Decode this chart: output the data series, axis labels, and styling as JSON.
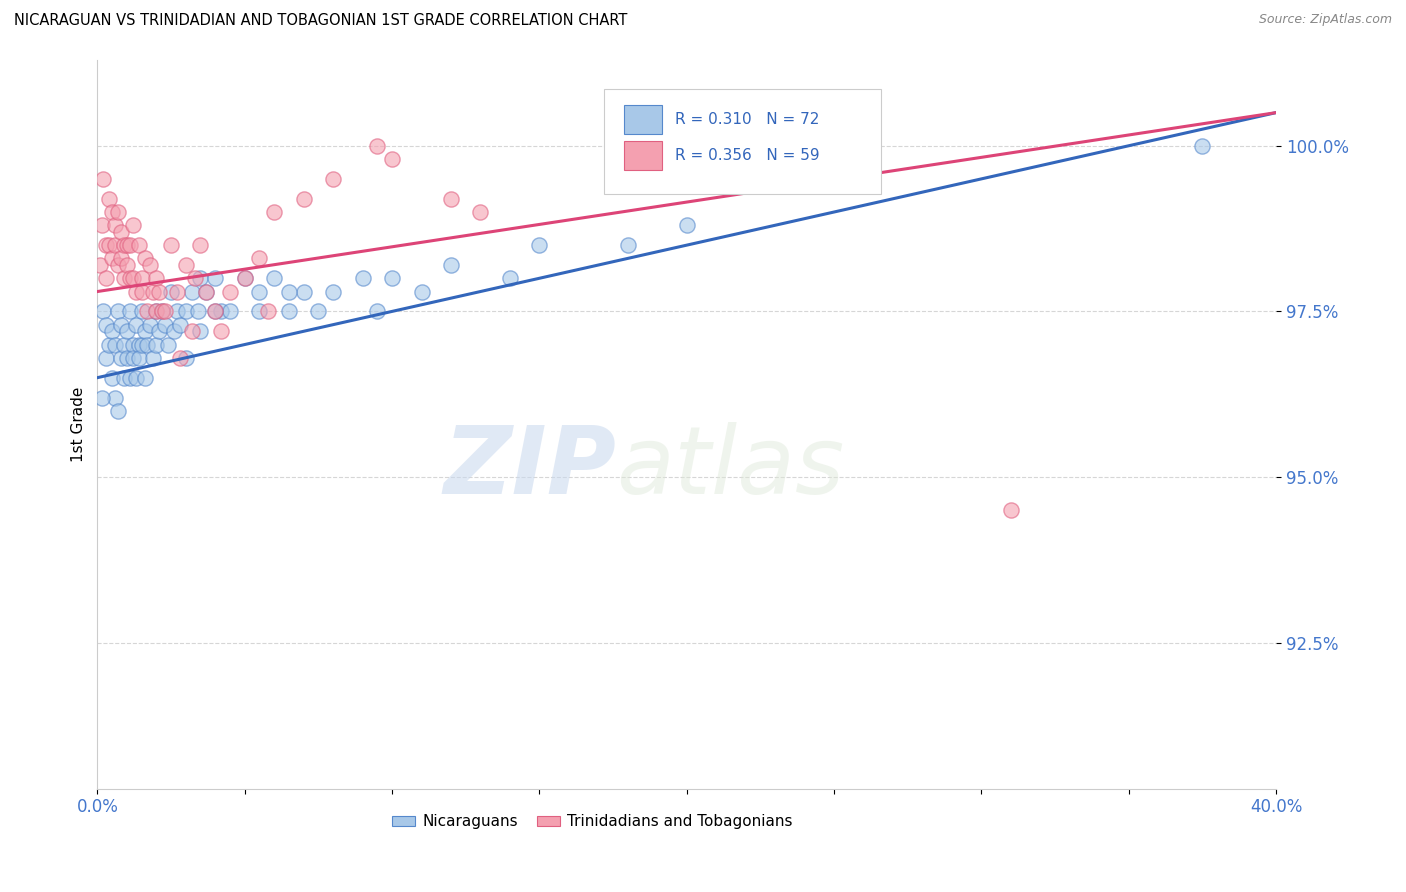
{
  "title": "NICARAGUAN VS TRINIDADIAN AND TOBAGONIAN 1ST GRADE CORRELATION CHART",
  "source": "Source: ZipAtlas.com",
  "ylabel": "1st Grade",
  "y_ticks": [
    92.5,
    95.0,
    97.5,
    100.0
  ],
  "y_tick_labels": [
    "92.5%",
    "95.0%",
    "97.5%",
    "100.0%"
  ],
  "x_lim": [
    0.0,
    40.0
  ],
  "y_lim": [
    90.3,
    101.3
  ],
  "blue_R": 0.31,
  "blue_N": 72,
  "pink_R": 0.356,
  "pink_N": 59,
  "blue_color": "#a8c8e8",
  "pink_color": "#f4a0b0",
  "blue_edge_color": "#5588cc",
  "pink_edge_color": "#e06080",
  "blue_line_color": "#3366bb",
  "pink_line_color": "#dd4477",
  "watermark_zip": "ZIP",
  "watermark_atlas": "atlas",
  "blue_line_x0": 0.0,
  "blue_line_y0": 96.5,
  "blue_line_x1": 40.0,
  "blue_line_y1": 100.5,
  "pink_line_x0": 0.0,
  "pink_line_y0": 97.8,
  "pink_line_x1": 40.0,
  "pink_line_y1": 100.5,
  "blue_points_x": [
    0.2,
    0.3,
    0.3,
    0.4,
    0.5,
    0.5,
    0.6,
    0.6,
    0.7,
    0.7,
    0.8,
    0.8,
    0.9,
    0.9,
    1.0,
    1.0,
    1.1,
    1.1,
    1.2,
    1.2,
    1.3,
    1.3,
    1.4,
    1.4,
    1.5,
    1.5,
    1.6,
    1.6,
    1.7,
    1.8,
    1.9,
    2.0,
    2.0,
    2.1,
    2.2,
    2.3,
    2.4,
    2.5,
    2.6,
    2.7,
    2.8,
    3.0,
    3.2,
    3.4,
    3.5,
    3.7,
    4.0,
    4.2,
    4.5,
    5.0,
    5.5,
    6.0,
    6.5,
    7.0,
    7.5,
    8.0,
    9.0,
    10.0,
    11.0,
    12.0,
    14.0,
    15.0,
    18.0,
    20.0,
    3.0,
    3.5,
    4.0,
    5.5,
    6.5,
    9.5,
    37.5,
    0.15
  ],
  "blue_points_y": [
    97.5,
    97.3,
    96.8,
    97.0,
    97.2,
    96.5,
    97.0,
    96.2,
    97.5,
    96.0,
    97.3,
    96.8,
    97.0,
    96.5,
    97.2,
    96.8,
    96.5,
    97.5,
    97.0,
    96.8,
    97.3,
    96.5,
    97.0,
    96.8,
    97.5,
    97.0,
    97.2,
    96.5,
    97.0,
    97.3,
    96.8,
    97.5,
    97.0,
    97.2,
    97.5,
    97.3,
    97.0,
    97.8,
    97.2,
    97.5,
    97.3,
    97.5,
    97.8,
    97.5,
    98.0,
    97.8,
    98.0,
    97.5,
    97.5,
    98.0,
    97.8,
    98.0,
    97.5,
    97.8,
    97.5,
    97.8,
    98.0,
    98.0,
    97.8,
    98.2,
    98.0,
    98.5,
    98.5,
    98.8,
    96.8,
    97.2,
    97.5,
    97.5,
    97.8,
    97.5,
    100.0,
    96.2
  ],
  "pink_points_x": [
    0.1,
    0.15,
    0.2,
    0.3,
    0.3,
    0.4,
    0.4,
    0.5,
    0.5,
    0.6,
    0.6,
    0.7,
    0.7,
    0.8,
    0.8,
    0.9,
    0.9,
    1.0,
    1.0,
    1.1,
    1.1,
    1.2,
    1.2,
    1.3,
    1.4,
    1.5,
    1.5,
    1.6,
    1.7,
    1.8,
    1.9,
    2.0,
    2.0,
    2.1,
    2.2,
    2.3,
    2.5,
    2.7,
    3.0,
    3.3,
    3.5,
    3.7,
    4.0,
    4.5,
    5.0,
    5.5,
    6.0,
    7.0,
    8.0,
    9.5,
    10.0,
    12.0,
    13.0,
    2.8,
    3.2,
    4.2,
    5.8,
    26.0,
    31.0
  ],
  "pink_points_y": [
    98.2,
    98.8,
    99.5,
    98.5,
    98.0,
    99.2,
    98.5,
    99.0,
    98.3,
    98.8,
    98.5,
    99.0,
    98.2,
    98.7,
    98.3,
    98.5,
    98.0,
    98.5,
    98.2,
    98.5,
    98.0,
    98.8,
    98.0,
    97.8,
    98.5,
    98.0,
    97.8,
    98.3,
    97.5,
    98.2,
    97.8,
    98.0,
    97.5,
    97.8,
    97.5,
    97.5,
    98.5,
    97.8,
    98.2,
    98.0,
    98.5,
    97.8,
    97.5,
    97.8,
    98.0,
    98.3,
    99.0,
    99.2,
    99.5,
    100.0,
    99.8,
    99.2,
    99.0,
    96.8,
    97.2,
    97.2,
    97.5,
    100.0,
    94.5
  ]
}
